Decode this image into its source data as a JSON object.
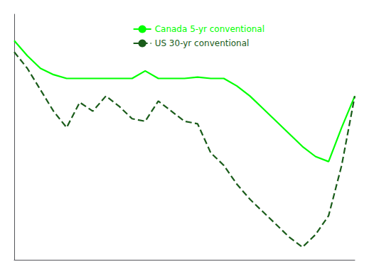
{
  "chart_data": {
    "type": "line",
    "x": [
      0,
      1,
      2,
      3,
      4,
      5,
      6,
      7,
      8,
      9,
      10,
      11,
      12,
      13,
      14,
      15,
      16,
      17,
      18,
      19,
      20,
      21,
      22,
      23,
      24,
      25,
      26
    ],
    "series": [
      {
        "name": "Canada 5-yr conventional",
        "color": "#00ff00",
        "line_style": "solid",
        "values": [
          3.74,
          3.62,
          3.52,
          3.47,
          3.44,
          3.44,
          3.44,
          3.44,
          3.44,
          3.44,
          3.5,
          3.44,
          3.44,
          3.44,
          3.45,
          3.44,
          3.44,
          3.38,
          3.3,
          3.2,
          3.1,
          3.0,
          2.9,
          2.82,
          2.78,
          3.05,
          3.3
        ]
      },
      {
        "name": "US 30-yr conventional",
        "color": "#1a5c1a",
        "line_style": "dashed",
        "values": [
          3.65,
          3.52,
          3.35,
          3.18,
          3.05,
          3.25,
          3.18,
          3.3,
          3.22,
          3.12,
          3.1,
          3.26,
          3.18,
          3.1,
          3.08,
          2.85,
          2.75,
          2.6,
          2.48,
          2.38,
          2.28,
          2.18,
          2.1,
          2.2,
          2.35,
          2.75,
          3.3
        ]
      }
    ],
    "xlim": [
      0,
      26
    ],
    "ylim": [
      2.0,
      3.95
    ],
    "tick_labels": false,
    "grid": false,
    "legend": "upper center"
  }
}
